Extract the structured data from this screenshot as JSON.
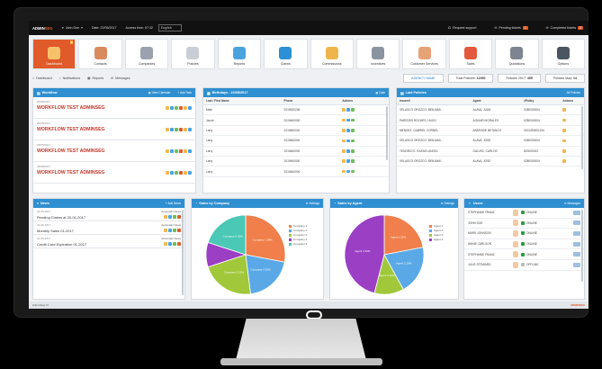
{
  "topbar": {
    "logo_a": "ADMIN",
    "logo_b": "SEG",
    "user": "John Doe",
    "date": "Date: 22/05/2017",
    "access": "Access time: 07:32",
    "language": "English",
    "support": "Request support",
    "pending": "Pending tickets",
    "pending_count": "1",
    "completed": "Completed tickets",
    "completed_count": "0"
  },
  "nav": [
    {
      "label": "Dashboard",
      "color": "#f5c26b",
      "count": "4",
      "icon": "dashboard-icon"
    },
    {
      "label": "Contacts",
      "color": "#d98b5f",
      "icon": "contacts-icon"
    },
    {
      "label": "Companies",
      "color": "#9aa3ad",
      "icon": "companies-icon"
    },
    {
      "label": "Policies",
      "color": "#c9ced6",
      "icon": "policies-icon"
    },
    {
      "label": "Reports",
      "color": "#4aa3df",
      "icon": "reports-icon"
    },
    {
      "label": "Claims",
      "color": "#2d8fd6",
      "icon": "claims-icon"
    },
    {
      "label": "Commissions",
      "color": "#f0b54a",
      "icon": "commissions-icon"
    },
    {
      "label": "Incentives",
      "color": "#8a94a0",
      "icon": "incentives-icon"
    },
    {
      "label": "Customer Services",
      "color": "#e6a376",
      "icon": "customer-services-icon"
    },
    {
      "label": "Sales",
      "color": "#e3593d",
      "icon": "sales-icon"
    },
    {
      "label": "Quotations",
      "color": "#7c8590",
      "icon": "quotations-icon"
    },
    {
      "label": "Options",
      "color": "#4b5561",
      "icon": "options-icon"
    }
  ],
  "subnav": {
    "tabs": [
      "Dashboard",
      "Notifications",
      "Reports",
      "Messages"
    ],
    "agency": "AGENCY NAME",
    "total_label": "Total Policies:",
    "total_value": "11950",
    "year_label": "Policies 2017:",
    "year_value": "455",
    "may_label": "Policies May:",
    "may_value": "14"
  },
  "workflow": {
    "title": "Workflow",
    "view_calendar": "View Calendar",
    "add_task": "Add Task",
    "items": [
      {
        "date": "26/05/2017",
        "title": "WORKFLOW TEST ADMINSEG"
      },
      {
        "date": "26/05/2017",
        "title": "WORKFLOW TEST ADMINSEG"
      },
      {
        "date": "26/05/2017",
        "title": "WORKFLOW TEST ADMINSEG"
      },
      {
        "date": "26/05/2017",
        "title": "WORKFLOW TEST ADMINSEG"
      }
    ]
  },
  "birthdays": {
    "title": "Birthdays - 22/05/2017",
    "action": "Date",
    "headers": [
      "Last / First Name",
      "Phone",
      "Actions"
    ],
    "rows": [
      {
        "name": "Mark",
        "phone": "2019000236"
      },
      {
        "name": "Jacob",
        "phone": "2019460000"
      },
      {
        "name": "Larry",
        "phone": "2019460000"
      },
      {
        "name": "Larry",
        "phone": "2019460000"
      },
      {
        "name": "Larry",
        "phone": "2019460000"
      },
      {
        "name": "Larry",
        "phone": "2019460000"
      },
      {
        "name": "Larry",
        "phone": "2019460000"
      }
    ]
  },
  "last_policies": {
    "title": "Last Policies",
    "action": "All Policies",
    "headers": [
      "Insured",
      "Agent",
      "#Policy",
      "Actions"
    ],
    "rows": [
      {
        "insured": "VELASCO OROZCO, BENJAMI...",
        "agent": "ALAVA, JUAN",
        "policy": "0280000004"
      },
      {
        "insured": "PAREDES ROCHES, HUGO",
        "agent": "AGUIAR MORALES",
        "policy": "0280000004"
      },
      {
        "insured": "MENDEZ, GABRIEL CORNEL",
        "agent": "ANDRADE BETANCO",
        "policy": "0001490001194"
      },
      {
        "insured": "VELASCO OROZCO, BENJAMI...",
        "agent": "ALAVA, JOSE",
        "policy": "0280000004"
      },
      {
        "insured": "TENORIO E. RAFAEL ANGEL",
        "agent": "GALVEZ, CARLOS",
        "policy": "820000022"
      },
      {
        "insured": "VELASCO OROZCO, BENJAMI...",
        "agent": "ALAVA, JOSE",
        "policy": "0280000004"
      }
    ]
  },
  "news": {
    "title": "News",
    "add": "Add News",
    "items": [
      {
        "date": "22-05-2017",
        "title": "Pending Claims at 20-01-2017",
        "auto": "Automatic News"
      },
      {
        "date": "22-05-2017",
        "title": "Monthly Sales 01-2017",
        "auto": "Automatic News"
      },
      {
        "date": "22-05-2017",
        "title": "Credit Card Expiration 01-2017",
        "auto": "Automatic News"
      }
    ]
  },
  "sales_company": {
    "title": "Sales by Company",
    "settings": "Settings"
  },
  "sales_agent": {
    "title": "Sales by Agent",
    "settings": "Settings"
  },
  "users": {
    "title": "Users",
    "action": "Messages",
    "rows": [
      {
        "name": "STEPHANIE FRANZ",
        "status": "ONLINE",
        "online": true
      },
      {
        "name": "JOHN DOE",
        "status": "ONLINE",
        "online": true
      },
      {
        "name": "MARK JOHNSON",
        "status": "ONLINE",
        "online": true
      },
      {
        "name": "ANNIE CARLSON",
        "status": "ONLINE",
        "online": true
      },
      {
        "name": "STEPHANIE FRANZ",
        "status": "ONLINE",
        "online": true
      },
      {
        "name": "JULIE STEWARD",
        "status": "OFFLINE",
        "online": false
      }
    ]
  },
  "footer": {
    "left": "AdminSeg v3",
    "right": "ADMINSEG"
  },
  "chart_data": [
    {
      "type": "pie",
      "title": "Sales by Company",
      "categories": [
        "Company 1",
        "Company 2",
        "Company 3",
        "Company 4",
        "Company 5"
      ],
      "values": [
        28,
        20,
        22,
        10,
        20
      ],
      "colors": [
        "#f07f4b",
        "#5aa9e6",
        "#a0c83a",
        "#9b3fc4",
        "#4bc8b6"
      ],
      "slice_labels": [
        "Company 1 28%",
        "Company 2 20%",
        "Company 3 22%",
        "",
        "Company 5 20%"
      ],
      "legend_position": "right"
    },
    {
      "type": "pie",
      "title": "Sales by Agent",
      "categories": [
        "Agent 1",
        "Agent 2",
        "Agent 3",
        "Agent 4"
      ],
      "values": [
        22,
        20,
        12,
        46
      ],
      "colors": [
        "#f07f4b",
        "#5aa9e6",
        "#a0c83a",
        "#9b3fc4"
      ],
      "slice_labels": [
        "Agent 1 22%",
        "Agent 2 20%",
        "Agent 3 12%",
        "Agent 4 46%"
      ],
      "legend_position": "right"
    }
  ]
}
